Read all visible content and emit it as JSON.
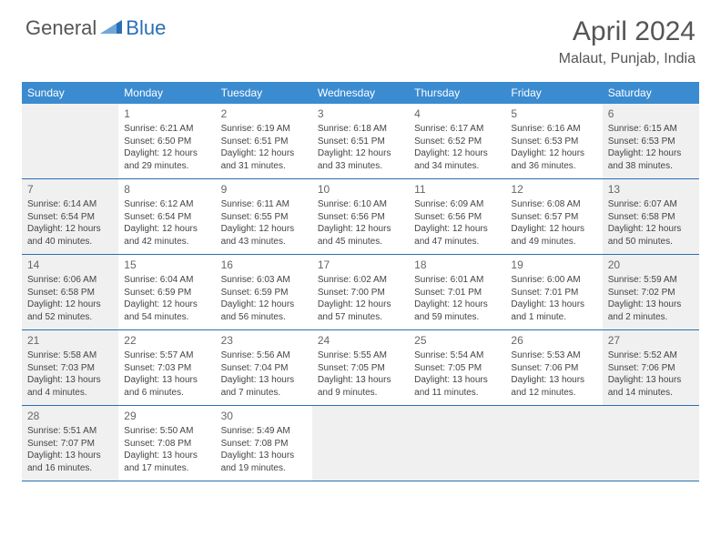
{
  "logo": {
    "part1": "General",
    "part2": "Blue"
  },
  "title": "April 2024",
  "location": "Malaut, Punjab, India",
  "colors": {
    "header_bg": "#3b8bd0",
    "border": "#2a6fb5",
    "shaded_bg": "#f0f0f0",
    "logo_gray": "#555555",
    "logo_blue": "#2a6fb5"
  },
  "dayHeaders": [
    "Sunday",
    "Monday",
    "Tuesday",
    "Wednesday",
    "Thursday",
    "Friday",
    "Saturday"
  ],
  "weeks": [
    [
      {
        "empty": true,
        "shaded": true
      },
      {
        "num": "1",
        "sunrise": "6:21 AM",
        "sunset": "6:50 PM",
        "daylight": "12 hours and 29 minutes."
      },
      {
        "num": "2",
        "sunrise": "6:19 AM",
        "sunset": "6:51 PM",
        "daylight": "12 hours and 31 minutes."
      },
      {
        "num": "3",
        "sunrise": "6:18 AM",
        "sunset": "6:51 PM",
        "daylight": "12 hours and 33 minutes."
      },
      {
        "num": "4",
        "sunrise": "6:17 AM",
        "sunset": "6:52 PM",
        "daylight": "12 hours and 34 minutes."
      },
      {
        "num": "5",
        "sunrise": "6:16 AM",
        "sunset": "6:53 PM",
        "daylight": "12 hours and 36 minutes."
      },
      {
        "num": "6",
        "shaded": true,
        "sunrise": "6:15 AM",
        "sunset": "6:53 PM",
        "daylight": "12 hours and 38 minutes."
      }
    ],
    [
      {
        "num": "7",
        "shaded": true,
        "sunrise": "6:14 AM",
        "sunset": "6:54 PM",
        "daylight": "12 hours and 40 minutes."
      },
      {
        "num": "8",
        "sunrise": "6:12 AM",
        "sunset": "6:54 PM",
        "daylight": "12 hours and 42 minutes."
      },
      {
        "num": "9",
        "sunrise": "6:11 AM",
        "sunset": "6:55 PM",
        "daylight": "12 hours and 43 minutes."
      },
      {
        "num": "10",
        "sunrise": "6:10 AM",
        "sunset": "6:56 PM",
        "daylight": "12 hours and 45 minutes."
      },
      {
        "num": "11",
        "sunrise": "6:09 AM",
        "sunset": "6:56 PM",
        "daylight": "12 hours and 47 minutes."
      },
      {
        "num": "12",
        "sunrise": "6:08 AM",
        "sunset": "6:57 PM",
        "daylight": "12 hours and 49 minutes."
      },
      {
        "num": "13",
        "shaded": true,
        "sunrise": "6:07 AM",
        "sunset": "6:58 PM",
        "daylight": "12 hours and 50 minutes."
      }
    ],
    [
      {
        "num": "14",
        "shaded": true,
        "sunrise": "6:06 AM",
        "sunset": "6:58 PM",
        "daylight": "12 hours and 52 minutes."
      },
      {
        "num": "15",
        "sunrise": "6:04 AM",
        "sunset": "6:59 PM",
        "daylight": "12 hours and 54 minutes."
      },
      {
        "num": "16",
        "sunrise": "6:03 AM",
        "sunset": "6:59 PM",
        "daylight": "12 hours and 56 minutes."
      },
      {
        "num": "17",
        "sunrise": "6:02 AM",
        "sunset": "7:00 PM",
        "daylight": "12 hours and 57 minutes."
      },
      {
        "num": "18",
        "sunrise": "6:01 AM",
        "sunset": "7:01 PM",
        "daylight": "12 hours and 59 minutes."
      },
      {
        "num": "19",
        "sunrise": "6:00 AM",
        "sunset": "7:01 PM",
        "daylight": "13 hours and 1 minute."
      },
      {
        "num": "20",
        "shaded": true,
        "sunrise": "5:59 AM",
        "sunset": "7:02 PM",
        "daylight": "13 hours and 2 minutes."
      }
    ],
    [
      {
        "num": "21",
        "shaded": true,
        "sunrise": "5:58 AM",
        "sunset": "7:03 PM",
        "daylight": "13 hours and 4 minutes."
      },
      {
        "num": "22",
        "sunrise": "5:57 AM",
        "sunset": "7:03 PM",
        "daylight": "13 hours and 6 minutes."
      },
      {
        "num": "23",
        "sunrise": "5:56 AM",
        "sunset": "7:04 PM",
        "daylight": "13 hours and 7 minutes."
      },
      {
        "num": "24",
        "sunrise": "5:55 AM",
        "sunset": "7:05 PM",
        "daylight": "13 hours and 9 minutes."
      },
      {
        "num": "25",
        "sunrise": "5:54 AM",
        "sunset": "7:05 PM",
        "daylight": "13 hours and 11 minutes."
      },
      {
        "num": "26",
        "sunrise": "5:53 AM",
        "sunset": "7:06 PM",
        "daylight": "13 hours and 12 minutes."
      },
      {
        "num": "27",
        "shaded": true,
        "sunrise": "5:52 AM",
        "sunset": "7:06 PM",
        "daylight": "13 hours and 14 minutes."
      }
    ],
    [
      {
        "num": "28",
        "shaded": true,
        "sunrise": "5:51 AM",
        "sunset": "7:07 PM",
        "daylight": "13 hours and 16 minutes."
      },
      {
        "num": "29",
        "sunrise": "5:50 AM",
        "sunset": "7:08 PM",
        "daylight": "13 hours and 17 minutes."
      },
      {
        "num": "30",
        "sunrise": "5:49 AM",
        "sunset": "7:08 PM",
        "daylight": "13 hours and 19 minutes."
      },
      {
        "empty": true,
        "shaded": true
      },
      {
        "empty": true,
        "shaded": true
      },
      {
        "empty": true,
        "shaded": true
      },
      {
        "empty": true,
        "shaded": true
      }
    ]
  ],
  "labels": {
    "sunrise": "Sunrise:",
    "sunset": "Sunset:",
    "daylight": "Daylight:"
  }
}
